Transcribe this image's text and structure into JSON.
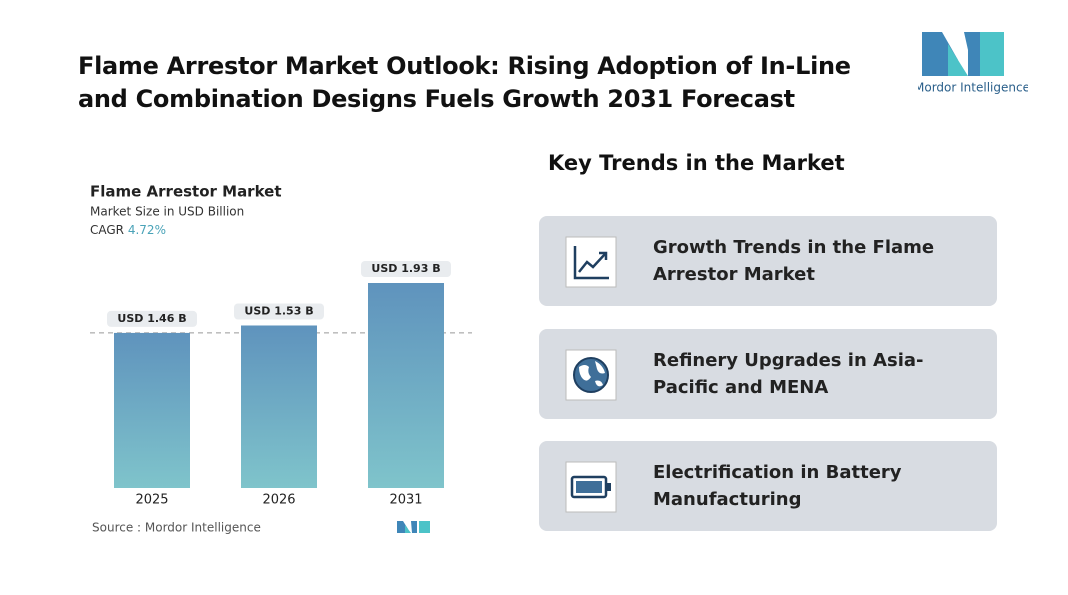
{
  "header": {
    "title": "Flame Arrestor Market Outlook: Rising Adoption of In-Line and Combination Designs Fuels Growth 2031 Forecast",
    "logo_text": "Mordor Intelligence"
  },
  "chart_data": {
    "type": "bar",
    "title": "Flame Arrestor Market",
    "subtitle": "Market Size in USD Billion",
    "cagr_label": "CAGR",
    "cagr": "4.72%",
    "categories": [
      "2025",
      "2026",
      "2031"
    ],
    "values": [
      1.46,
      1.53,
      1.93
    ],
    "value_labels": [
      "USD 1.46 B",
      "USD 1.53 B",
      "USD 1.93 B"
    ],
    "color": "#5f93bd",
    "source": "Source : Mordor Intelligence"
  },
  "trends": {
    "title": "Key Trends in the Market",
    "items": [
      "Growth Trends in the Flame Arrestor Market",
      "Refinery Upgrades in Asia-Pacific and MENA",
      "Electrification in Battery Manufacturing"
    ]
  }
}
